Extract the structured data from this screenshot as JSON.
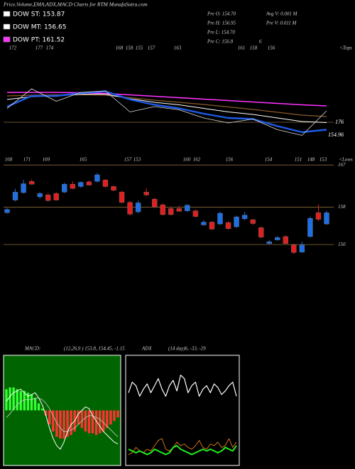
{
  "header": {
    "title": "Price,Volume,EMA,ADX,MACD Charts for RTM MunafaSutra.com"
  },
  "legend": [
    {
      "label": "DOW ST: 153.87",
      "color": "#ffffff"
    },
    {
      "label": "DOW MT: 156.65",
      "color": "#ffffff"
    },
    {
      "label": "DOW PT: 161.52",
      "color": "#ff33ff"
    }
  ],
  "info": [
    [
      "Pre O: 154.70",
      "Avg V: 0.001 M"
    ],
    [
      "Pre H: 156.95",
      "Pre V: 0.011 M"
    ],
    [
      "Pre L: 154.70"
    ],
    [
      "Pre C: 156.8",
      "6"
    ]
  ],
  "chart_data": [
    {
      "type": "line",
      "x": [
        0,
        3,
        6,
        9,
        12,
        15,
        18,
        21,
        24,
        27,
        30,
        33,
        36,
        39
      ],
      "xlim": [
        0,
        39
      ],
      "ylim": [
        146,
        166
      ],
      "top_labels": [
        "172",
        "177",
        "174",
        "168",
        "158",
        "155",
        "157",
        "163",
        "161",
        "158",
        "156",
        "<Tops"
      ],
      "bottom_labels": [
        "168",
        "171",
        "169",
        "165",
        "157",
        "153",
        "160",
        "162",
        "156",
        "154",
        "151",
        "148",
        "153",
        "<Lows"
      ],
      "annotations": [
        "176",
        "154.96"
      ],
      "series": [
        {
          "color": "#ff33ff",
          "values": [
            162,
            162,
            162,
            161.9,
            161.7,
            161.3,
            160.9,
            160.5,
            160.1,
            159.7,
            159.3,
            158.9,
            158.5,
            158.2
          ]
        },
        {
          "color": "#8b5a2b",
          "values": [
            161,
            161.2,
            161.3,
            161.3,
            161.2,
            160.5,
            159.8,
            159.2,
            158.6,
            157.9,
            157.2,
            156.4,
            155.6,
            155.2
          ]
        },
        {
          "color": "#ffffff",
          "values": [
            160,
            160.8,
            161,
            161.5,
            161.5,
            160.2,
            159.2,
            158.5,
            157.5,
            156.5,
            155.8,
            154.8,
            153.8,
            153.5
          ]
        },
        {
          "color": "#1e5ae6",
          "values": [
            158,
            161,
            161,
            161.8,
            162.3,
            160,
            158.5,
            157.5,
            156,
            154.8,
            154.5,
            152.5,
            150.8,
            151.5
          ]
        },
        {
          "color": "#dddddd",
          "values": [
            157.5,
            163.0,
            159.5,
            162.0,
            162.4,
            156.5,
            158.0,
            157.1,
            154.8,
            153.4,
            154.5,
            151.5,
            149.9,
            156.8
          ]
        }
      ]
    },
    {
      "type": "candlestick",
      "xlim": [
        0,
        39
      ],
      "ylim": [
        146,
        169
      ],
      "yticks": [
        167,
        158,
        150
      ],
      "grid_color": "#8b6a3a",
      "up_color": "#1e6ee6",
      "down_color": "#e02020",
      "open": [
        156.8,
        159.5,
        161.1,
        163.5,
        160.2,
        160.6,
        160.9,
        161.2,
        162.9,
        162.4,
        163.4,
        163.5,
        163.8,
        162.4,
        161.2,
        159.0,
        157.0,
        161.2,
        159.7,
        158.5,
        157.7,
        157.7,
        157.2,
        157.2,
        154.2,
        154.8,
        154.4,
        154.7,
        153.8,
        155.5,
        155.3,
        153.6,
        150.2,
        151.0,
        151.7,
        149.9,
        148.4,
        151.7,
        156.8,
        154.4
      ],
      "high": [
        157.8,
        161.9,
        163.8,
        163.9,
        161.2,
        161.0,
        161.2,
        163.2,
        163.5,
        163.5,
        163.7,
        165.3,
        164.0,
        162.6,
        161.5,
        159.3,
        159.4,
        162.0,
        160.0,
        158.8,
        158.0,
        158.3,
        158.6,
        157.5,
        155.2,
        155.0,
        157.0,
        155.0,
        156.2,
        157.0,
        155.5,
        153.9,
        151.0,
        151.8,
        152.0,
        150.2,
        150.6,
        156.0,
        158.6,
        157.2
      ],
      "low": [
        156.6,
        159.2,
        160.9,
        162.8,
        159.8,
        159.2,
        159.4,
        161.0,
        161.8,
        162.1,
        162.6,
        163.3,
        162.2,
        161.4,
        158.8,
        156.2,
        156.7,
        160.3,
        157.8,
        156.2,
        156.2,
        157.0,
        157.0,
        155.8,
        154.0,
        153.1,
        154.2,
        153.2,
        153.6,
        155.2,
        154.2,
        151.3,
        150.0,
        150.8,
        150.0,
        148.0,
        148.2,
        151.5,
        155.0,
        154.2
      ],
      "close": [
        157.5,
        161.2,
        163.0,
        162.9,
        160.9,
        159.4,
        159.5,
        162.9,
        162.0,
        163.3,
        162.7,
        164.9,
        162.4,
        161.6,
        159.0,
        156.5,
        158.9,
        160.6,
        158.0,
        156.4,
        156.4,
        157.1,
        158.4,
        156.0,
        154.8,
        153.3,
        156.7,
        153.4,
        155.9,
        156.3,
        154.5,
        151.6,
        150.6,
        151.5,
        150.2,
        148.3,
        149.9,
        155.6,
        155.4,
        156.8
      ]
    },
    {
      "type": "macd",
      "title": "MACD:",
      "subtitle": "(12,26,9 ) 153.8, 154.45, -1.15",
      "ylim": [
        -3,
        3
      ],
      "background": "#006400",
      "positive_color": "#33ff33",
      "negative_color": "#ff3333",
      "histogram": [
        1.2,
        1.3,
        1.3,
        1.2,
        1.1,
        1.1,
        1.0,
        0.9,
        0.7,
        0.4,
        0.1,
        -0.3,
        -0.8,
        -1.2,
        -1.5,
        -1.6,
        -1.6,
        -1.5,
        -1.4,
        -1.2,
        -0.8,
        -1.0,
        -1.2,
        -1.3,
        -1.3,
        -1.4,
        -1.3,
        -1.2,
        -1.0,
        -0.8,
        -0.6,
        -0.4
      ],
      "series": [
        {
          "color": "#ffffff",
          "values": [
            0.5,
            0.8,
            1.0,
            1.1,
            1.2,
            1.0,
            0.8,
            0.9,
            1.0,
            0.7,
            0.3,
            -0.3,
            -1.0,
            -1.6,
            -2.0,
            -2.2,
            -1.8,
            -1.2,
            -0.8,
            -0.6,
            -0.2,
            0.0,
            0.2,
            0.1,
            -0.3,
            -0.6,
            -0.9,
            -1.2,
            -1.4,
            -1.6,
            -1.8,
            -1.9
          ]
        },
        {
          "color": "#cccccc",
          "values": [
            -0.4,
            -0.2,
            0.1,
            0.3,
            0.5,
            0.6,
            0.6,
            0.6,
            0.7,
            0.7,
            0.6,
            0.4,
            0.1,
            -0.3,
            -0.7,
            -1.0,
            -1.2,
            -1.2,
            -1.1,
            -1.0,
            -0.8,
            -0.6,
            -0.4,
            -0.3,
            -0.3,
            -0.4,
            -0.5,
            -0.7,
            -0.9,
            -1.1,
            -1.3,
            -1.5
          ]
        }
      ]
    },
    {
      "type": "line",
      "title": "ADX",
      "subtitle": "(14 day)6, -33, -29",
      "ylim": [
        0,
        60
      ],
      "background": "#000000",
      "series": [
        {
          "color": "#ffffff",
          "values": [
            40,
            46,
            44,
            38,
            42,
            45,
            40,
            44,
            48,
            42,
            38,
            44,
            47,
            41,
            50,
            48,
            40,
            44,
            46,
            38,
            42,
            44,
            40,
            45,
            43,
            39,
            41,
            44,
            46,
            38
          ]
        },
        {
          "color": "#ff8c1a",
          "values": [
            5,
            6,
            9,
            7,
            6,
            8,
            7,
            10,
            13,
            14,
            8,
            7,
            9,
            12,
            10,
            11,
            9,
            8,
            10,
            13,
            9,
            8,
            11,
            10,
            12,
            9,
            10,
            14,
            9,
            12
          ]
        },
        {
          "color": "#22ee22",
          "values": [
            8,
            7,
            6,
            7,
            6,
            5,
            6,
            8,
            7,
            6,
            5,
            6,
            9,
            10,
            8,
            7,
            6,
            5,
            6,
            7,
            8,
            7,
            8,
            7,
            6,
            7,
            9,
            8,
            7,
            10
          ]
        }
      ]
    }
  ]
}
